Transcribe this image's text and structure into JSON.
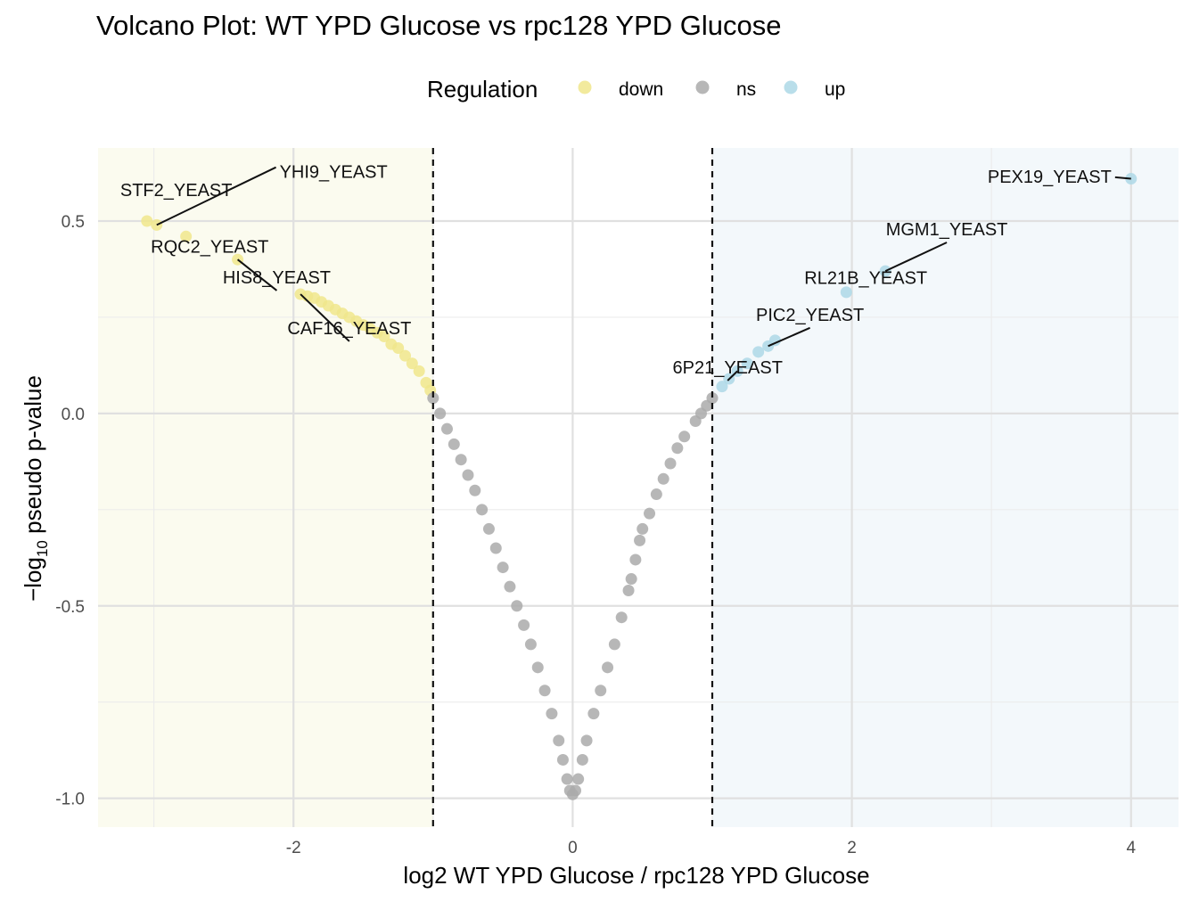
{
  "chart_data": {
    "type": "scatter",
    "title": "Volcano Plot: WT YPD Glucose vs rpc128 YPD Glucose",
    "xlabel": "log2 WT YPD Glucose / rpc128 YPD Glucose",
    "ylabel_prefix": "−log",
    "ylabel_sub": "10",
    "ylabel_suffix": " pseudo p-value",
    "xlim": [
      -3.4,
      4.34
    ],
    "ylim": [
      -1.075,
      0.69
    ],
    "x_ticks": [
      -2,
      0,
      2,
      4
    ],
    "x_tick_labels": [
      "-2",
      "0",
      "2",
      "4"
    ],
    "y_ticks": [
      -1.0,
      -0.5,
      0.0,
      0.5
    ],
    "y_tick_labels": [
      "-1.0",
      "-0.5",
      "0.0",
      "0.5"
    ],
    "grid": true,
    "thresholds": [
      -1,
      1
    ],
    "legend": {
      "title": "Regulation",
      "position": "top",
      "entries": [
        {
          "label": "down",
          "color": "#f0e68c"
        },
        {
          "label": "ns",
          "color": "#aaaaaa"
        },
        {
          "label": "up",
          "color": "#add8e6"
        }
      ]
    },
    "region_colors": {
      "down": "#fbfbef",
      "up": "#f3f8fb"
    },
    "series": [
      {
        "name": "down",
        "color": "#f0e68c",
        "points": [
          [
            -3.05,
            0.5
          ],
          [
            -2.98,
            0.49
          ],
          [
            -2.77,
            0.46
          ],
          [
            -2.4,
            0.4
          ],
          [
            -1.95,
            0.31
          ],
          [
            -1.9,
            0.305
          ],
          [
            -1.85,
            0.3
          ],
          [
            -1.8,
            0.29
          ],
          [
            -1.75,
            0.28
          ],
          [
            -1.7,
            0.27
          ],
          [
            -1.65,
            0.26
          ],
          [
            -1.6,
            0.25
          ],
          [
            -1.55,
            0.24
          ],
          [
            -1.5,
            0.23
          ],
          [
            -1.45,
            0.22
          ],
          [
            -1.4,
            0.21
          ],
          [
            -1.35,
            0.2
          ],
          [
            -1.3,
            0.18
          ],
          [
            -1.25,
            0.17
          ],
          [
            -1.2,
            0.15
          ],
          [
            -1.15,
            0.13
          ],
          [
            -1.1,
            0.11
          ],
          [
            -1.05,
            0.08
          ],
          [
            -1.02,
            0.06
          ]
        ]
      },
      {
        "name": "ns",
        "color": "#aaaaaa",
        "points": [
          [
            -1.0,
            0.04
          ],
          [
            -0.95,
            0.0
          ],
          [
            -0.9,
            -0.04
          ],
          [
            -0.85,
            -0.08
          ],
          [
            -0.8,
            -0.12
          ],
          [
            -0.75,
            -0.16
          ],
          [
            -0.7,
            -0.2
          ],
          [
            -0.65,
            -0.25
          ],
          [
            -0.6,
            -0.3
          ],
          [
            -0.55,
            -0.35
          ],
          [
            -0.5,
            -0.4
          ],
          [
            -0.45,
            -0.45
          ],
          [
            -0.4,
            -0.5
          ],
          [
            -0.35,
            -0.55
          ],
          [
            -0.3,
            -0.6
          ],
          [
            -0.25,
            -0.66
          ],
          [
            -0.2,
            -0.72
          ],
          [
            -0.15,
            -0.78
          ],
          [
            -0.1,
            -0.85
          ],
          [
            -0.07,
            -0.9
          ],
          [
            -0.04,
            -0.95
          ],
          [
            -0.02,
            -0.98
          ],
          [
            0.0,
            -0.99
          ],
          [
            0.02,
            -0.98
          ],
          [
            0.04,
            -0.95
          ],
          [
            0.07,
            -0.9
          ],
          [
            0.1,
            -0.85
          ],
          [
            0.15,
            -0.78
          ],
          [
            0.2,
            -0.72
          ],
          [
            0.25,
            -0.66
          ],
          [
            0.3,
            -0.6
          ],
          [
            0.35,
            -0.53
          ],
          [
            0.4,
            -0.46
          ],
          [
            0.42,
            -0.43
          ],
          [
            0.45,
            -0.38
          ],
          [
            0.48,
            -0.33
          ],
          [
            0.5,
            -0.3
          ],
          [
            0.55,
            -0.26
          ],
          [
            0.6,
            -0.21
          ],
          [
            0.65,
            -0.17
          ],
          [
            0.7,
            -0.13
          ],
          [
            0.75,
            -0.09
          ],
          [
            0.8,
            -0.06
          ],
          [
            0.88,
            -0.02
          ],
          [
            0.92,
            0.0
          ],
          [
            0.96,
            0.02
          ],
          [
            1.0,
            0.04
          ]
        ]
      },
      {
        "name": "up",
        "color": "#add8e6",
        "points": [
          [
            1.07,
            0.07
          ],
          [
            1.12,
            0.09
          ],
          [
            1.18,
            0.11
          ],
          [
            1.25,
            0.13
          ],
          [
            1.33,
            0.16
          ],
          [
            1.4,
            0.175
          ],
          [
            1.45,
            0.19
          ],
          [
            1.96,
            0.315
          ],
          [
            2.24,
            0.37
          ],
          [
            4.0,
            0.61
          ]
        ]
      }
    ],
    "labels": [
      {
        "text": "STF2_YEAST",
        "point": [
          -3.05,
          0.5
        ],
        "anchor": "middle",
        "label_at": [
          -2.84,
          0.565
        ]
      },
      {
        "text": "YHI9_YEAST",
        "point": [
          -2.98,
          0.49
        ],
        "anchor": "start",
        "label_at": [
          -2.1,
          0.612
        ],
        "line": true
      },
      {
        "text": "RQC2_YEAST",
        "point": [
          -2.77,
          0.46
        ],
        "anchor": "middle",
        "label_at": [
          -2.6,
          0.418
        ]
      },
      {
        "text": "HIS8_YEAST",
        "point": [
          -2.4,
          0.4
        ],
        "anchor": "middle",
        "label_at": [
          -2.12,
          0.338
        ],
        "line": true
      },
      {
        "text": "CAF16_YEAST",
        "point": [
          -1.95,
          0.31
        ],
        "anchor": "middle",
        "label_at": [
          -1.6,
          0.206
        ],
        "line": true
      },
      {
        "text": "PEX19_YEAST",
        "point": [
          4.0,
          0.61
        ],
        "anchor": "end",
        "label_at": [
          3.86,
          0.6
        ],
        "line": true
      },
      {
        "text": "MGM1_YEAST",
        "point": [
          2.24,
          0.37
        ],
        "anchor": "middle",
        "label_at": [
          2.68,
          0.463
        ],
        "line": true
      },
      {
        "text": "RL21B_YEAST",
        "point": [
          1.96,
          0.315
        ],
        "anchor": "middle",
        "label_at": [
          2.1,
          0.337
        ]
      },
      {
        "text": "PIC2_YEAST",
        "point": [
          1.4,
          0.175
        ],
        "anchor": "middle",
        "label_at": [
          1.7,
          0.241
        ],
        "line": true
      },
      {
        "text": "6P21_YEAST",
        "point": [
          1.18,
          0.11
        ],
        "anchor": "middle",
        "label_at": [
          1.11,
          0.104
        ],
        "line": true
      }
    ]
  }
}
